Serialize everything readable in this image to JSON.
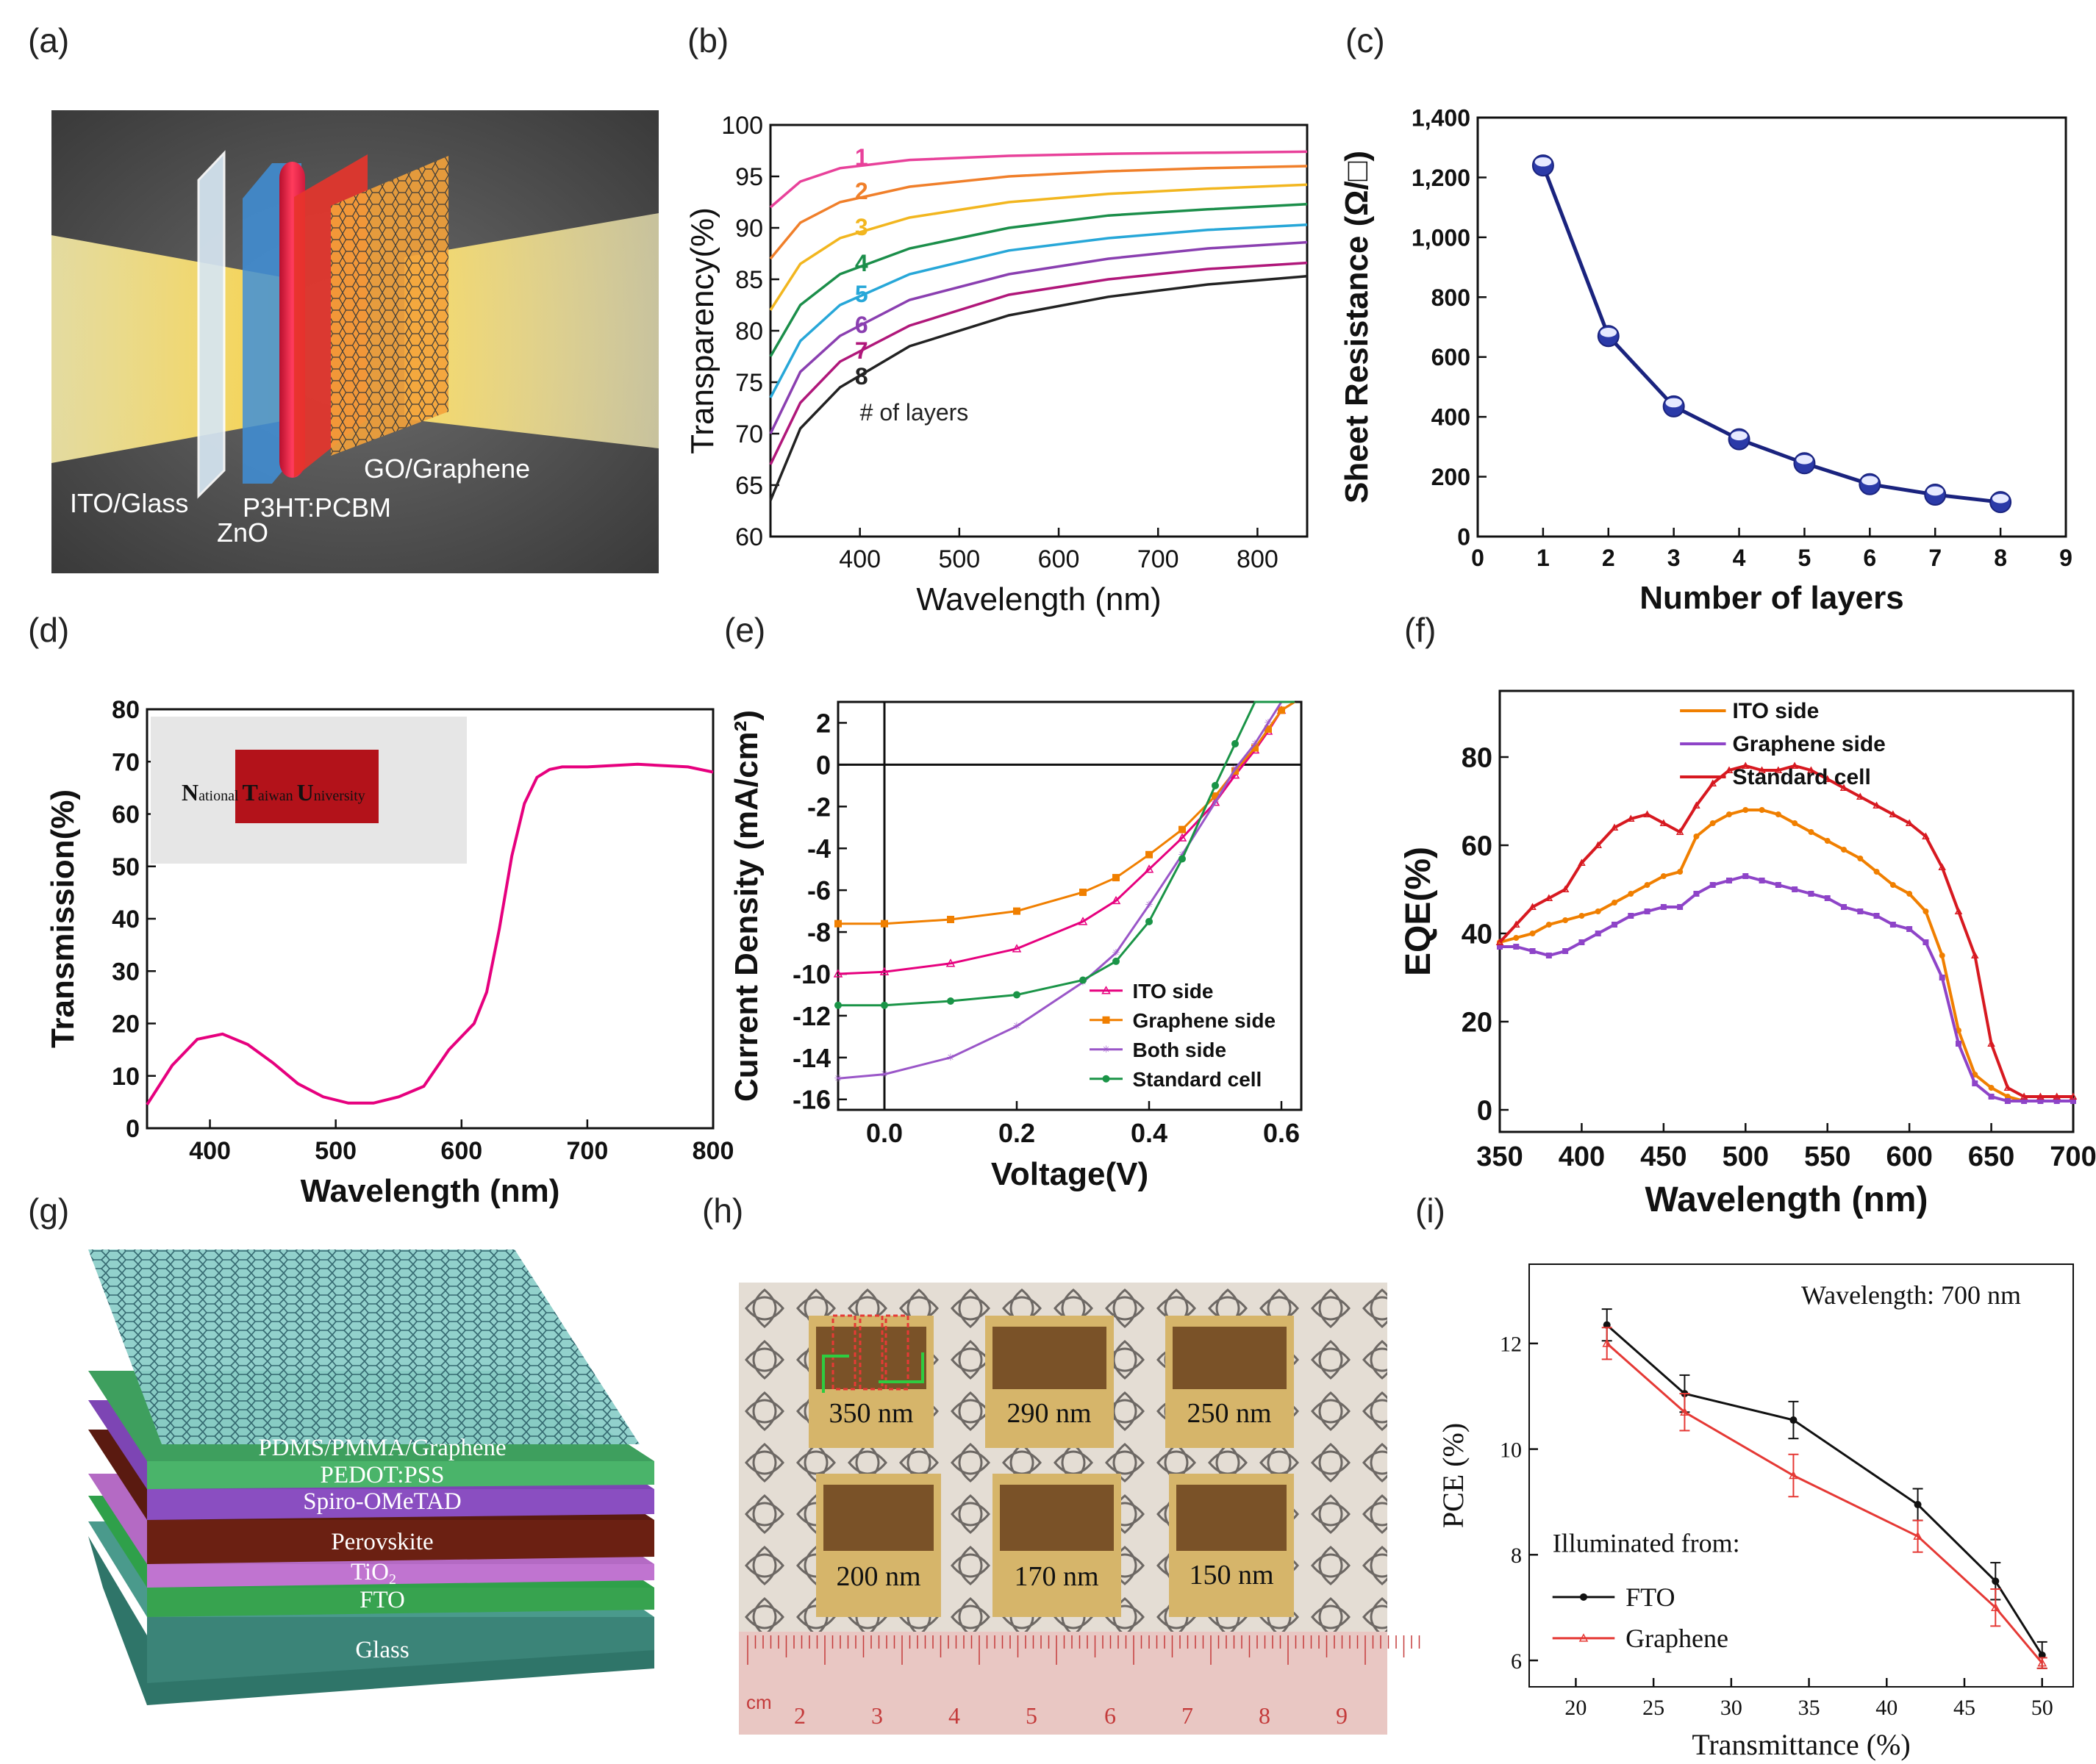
{
  "panel_labels": [
    "(a)",
    "(b)",
    "(c)",
    "(d)",
    "(e)",
    "(f)",
    "(g)",
    "(h)",
    "(i)"
  ],
  "panel_a": {
    "layers": [
      "ITO/Glass",
      "ZnO",
      "P3HT:PCBM",
      "GO/Graphene"
    ]
  },
  "panel_d_inset": {
    "text_parts": [
      "N",
      "ational ",
      "T",
      "aiwan ",
      "U",
      "niversity"
    ]
  },
  "panel_g": {
    "layers": [
      "PDMS/PMMA/Graphene",
      "PEDOT:PSS",
      "Spiro-OMeTAD",
      "Perovskite",
      "TiO",
      "2",
      "FTO",
      "Glass"
    ],
    "colors": {
      "graphene": "#6fb8b3",
      "pedot": "#4ab46a",
      "spiro": "#8a4ec1",
      "perovskite": "#6b2012",
      "tio2": "#c074d0",
      "fto": "#37a34f",
      "glass": "#3f8a7d"
    }
  },
  "panel_h": {
    "samples": [
      "350 nm",
      "290 nm",
      "250 nm",
      "200 nm",
      "170 nm",
      "150 nm"
    ],
    "ruler_label": "cm",
    "ruler_numbers": [
      "2",
      "3",
      "4",
      "5",
      "6",
      "7",
      "8",
      "9"
    ]
  },
  "chart_data": [
    {
      "id": "b",
      "type": "line",
      "xlabel": "Wavelength (nm)",
      "ylabel": "Transparency(%)",
      "xlim": [
        310,
        850
      ],
      "ylim": [
        60,
        100
      ],
      "xticks": [
        400,
        500,
        600,
        700,
        800
      ],
      "yticks": [
        60,
        65,
        70,
        75,
        80,
        85,
        90,
        95,
        100
      ],
      "annotation": "# of layers",
      "x": [
        310,
        340,
        380,
        450,
        550,
        650,
        750,
        850
      ],
      "series": [
        {
          "name": "1",
          "color": "#e8419a",
          "values": [
            92.0,
            94.5,
            95.8,
            96.6,
            97.0,
            97.2,
            97.3,
            97.4
          ]
        },
        {
          "name": "2",
          "color": "#f07f2a",
          "values": [
            87.0,
            90.5,
            92.5,
            94.0,
            95.0,
            95.5,
            95.8,
            96.0
          ]
        },
        {
          "name": "3",
          "color": "#f2b61f",
          "values": [
            82.0,
            86.5,
            89.0,
            91.0,
            92.5,
            93.3,
            93.8,
            94.2
          ]
        },
        {
          "name": "4",
          "color": "#1b8e4a",
          "values": [
            77.5,
            82.5,
            85.5,
            88.0,
            90.0,
            91.2,
            91.8,
            92.3
          ]
        },
        {
          "name": "5",
          "color": "#27a7d8",
          "values": [
            73.5,
            79.0,
            82.5,
            85.5,
            87.8,
            89.0,
            89.8,
            90.3
          ]
        },
        {
          "name": "6",
          "color": "#8a3fb0",
          "values": [
            70.0,
            76.0,
            79.5,
            83.0,
            85.5,
            87.0,
            88.0,
            88.6
          ]
        },
        {
          "name": "7",
          "color": "#b0177a",
          "values": [
            67.0,
            73.0,
            77.0,
            80.5,
            83.5,
            85.0,
            86.0,
            86.6
          ]
        },
        {
          "name": "8",
          "color": "#222222",
          "values": [
            63.5,
            70.5,
            74.5,
            78.5,
            81.5,
            83.3,
            84.5,
            85.3
          ]
        }
      ]
    },
    {
      "id": "c",
      "type": "line",
      "xlabel": "Number of layers",
      "ylabel": "Sheet Resistance (Ω/□)",
      "xlim": [
        0,
        9
      ],
      "ylim": [
        0,
        1400
      ],
      "xticks": [
        0,
        1,
        2,
        3,
        4,
        5,
        6,
        7,
        8,
        9
      ],
      "yticks": [
        0,
        200,
        400,
        600,
        800,
        1000,
        1200,
        1400
      ],
      "ytick_labels": [
        "0",
        "200",
        "400",
        "600",
        "800",
        "1,000",
        "1,200",
        "1,400"
      ],
      "x": [
        1,
        2,
        3,
        4,
        5,
        6,
        7,
        8
      ],
      "values": [
        1240,
        670,
        435,
        325,
        245,
        175,
        140,
        115
      ],
      "color": "#1a237e"
    },
    {
      "id": "d",
      "type": "line",
      "xlabel": "Wavelength (nm)",
      "ylabel": "Transmission(%)",
      "xlim": [
        350,
        800
      ],
      "ylim": [
        0,
        80
      ],
      "xticks": [
        400,
        500,
        600,
        700,
        800
      ],
      "yticks": [
        0,
        10,
        20,
        30,
        40,
        50,
        60,
        70,
        80
      ],
      "color": "#e6007e",
      "x": [
        350,
        370,
        390,
        410,
        430,
        450,
        470,
        490,
        510,
        530,
        550,
        570,
        590,
        610,
        620,
        630,
        640,
        650,
        660,
        670,
        680,
        700,
        740,
        780,
        800
      ],
      "values": [
        4.5,
        12,
        17,
        18,
        16,
        12.5,
        8.5,
        6,
        4.8,
        4.8,
        6,
        8,
        15,
        20,
        26,
        38,
        52,
        62,
        67,
        68.5,
        69,
        69,
        69.5,
        69,
        68
      ]
    },
    {
      "id": "e",
      "type": "line",
      "xlabel": "Voltage(V)",
      "ylabel": "Current Density (mA/cm²)",
      "xlim": [
        -0.07,
        0.63
      ],
      "ylim": [
        -16.5,
        3
      ],
      "xticks": [
        0.0,
        0.2,
        0.4,
        0.6
      ],
      "xtick_labels": [
        "0.0",
        "0.2",
        "0.4",
        "0.6"
      ],
      "yticks": [
        -16,
        -14,
        -12,
        -10,
        -8,
        -6,
        -4,
        -2,
        0,
        2
      ],
      "x": [
        -0.07,
        0.0,
        0.1,
        0.2,
        0.3,
        0.35,
        0.4,
        0.45,
        0.5,
        0.53,
        0.56,
        0.58,
        0.6,
        0.62
      ],
      "series": [
        {
          "name": "ITO side",
          "color": "#e6007e",
          "values": [
            -10.0,
            -9.9,
            -9.5,
            -8.8,
            -7.5,
            -6.5,
            -5.0,
            -3.5,
            -1.8,
            -0.5,
            0.7,
            1.6,
            2.6,
            3.0
          ]
        },
        {
          "name": "Graphene side",
          "color": "#f07f00",
          "values": [
            -7.6,
            -7.6,
            -7.4,
            -7.0,
            -6.1,
            -5.4,
            -4.3,
            -3.1,
            -1.5,
            -0.3,
            0.8,
            1.7,
            2.6,
            3.0
          ]
        },
        {
          "name": "Both side",
          "color": "#9a56c8",
          "values": [
            -15.0,
            -14.8,
            -14.0,
            -12.5,
            -10.4,
            -9.0,
            -6.7,
            -4.3,
            -1.8,
            -0.2,
            1.0,
            2.0,
            3.0,
            3.0
          ]
        },
        {
          "name": "Standard cell",
          "color": "#1a9447",
          "values": [
            -11.5,
            -11.5,
            -11.3,
            -11.0,
            -10.3,
            -9.4,
            -7.5,
            -4.5,
            -1.0,
            1.0,
            3.0,
            3.0,
            3.0,
            3.0
          ]
        }
      ]
    },
    {
      "id": "f",
      "type": "line",
      "xlabel": "Wavelength (nm)",
      "ylabel": "EQE(%)",
      "xlim": [
        350,
        700
      ],
      "ylim": [
        -5,
        95
      ],
      "xticks": [
        350,
        400,
        450,
        500,
        550,
        600,
        650,
        700
      ],
      "yticks": [
        0,
        20,
        40,
        60,
        80
      ],
      "x": [
        350,
        360,
        370,
        380,
        390,
        400,
        410,
        420,
        430,
        440,
        450,
        460,
        470,
        480,
        490,
        500,
        510,
        520,
        530,
        540,
        550,
        560,
        570,
        580,
        590,
        600,
        610,
        620,
        630,
        640,
        650,
        660,
        670,
        680,
        690,
        700
      ],
      "series": [
        {
          "name": "ITO side",
          "color": "#f07f00",
          "values": [
            38,
            39,
            40,
            42,
            43,
            44,
            45,
            47,
            49,
            51,
            53,
            54,
            62,
            65,
            67,
            68,
            68,
            67,
            65,
            63,
            61,
            59,
            57,
            54,
            51,
            49,
            45,
            35,
            18,
            8,
            5,
            3,
            2,
            2,
            2,
            2
          ]
        },
        {
          "name": "Graphene side",
          "color": "#8e44c8",
          "values": [
            37,
            37,
            36,
            35,
            36,
            38,
            40,
            42,
            44,
            45,
            46,
            46,
            49,
            51,
            52,
            53,
            52,
            51,
            50,
            49,
            48,
            46,
            45,
            44,
            42,
            41,
            38,
            30,
            15,
            6,
            3,
            2,
            2,
            2,
            2,
            2
          ]
        },
        {
          "name": "Standard cell",
          "color": "#d71920",
          "values": [
            38,
            42,
            46,
            48,
            50,
            56,
            60,
            64,
            66,
            67,
            65,
            63,
            69,
            74,
            77,
            78,
            77,
            77,
            78,
            77,
            75,
            73,
            71,
            69,
            67,
            65,
            62,
            55,
            45,
            35,
            15,
            5,
            3,
            3,
            3,
            3
          ]
        }
      ]
    },
    {
      "id": "i",
      "type": "line",
      "xlabel": "Transmittance (%)",
      "ylabel": "PCE (%)",
      "xlim": [
        17,
        52
      ],
      "ylim": [
        5.5,
        13.5
      ],
      "xticks": [
        20,
        25,
        30,
        35,
        40,
        45,
        50
      ],
      "yticks": [
        6,
        8,
        10,
        12
      ],
      "annotation": "Wavelength: 700 nm",
      "legend_title": "Illuminated from:",
      "x": [
        22,
        27,
        34,
        42,
        47,
        50
      ],
      "series": [
        {
          "name": "FTO",
          "color": "#111111",
          "values": [
            12.35,
            11.05,
            10.55,
            8.95,
            7.5,
            6.1
          ],
          "err": [
            0.3,
            0.35,
            0.35,
            0.3,
            0.35,
            0.25
          ]
        },
        {
          "name": "Graphene",
          "color": "#e53935",
          "values": [
            12.0,
            10.7,
            9.5,
            8.35,
            7.0,
            5.95
          ],
          "err": [
            0.3,
            0.35,
            0.4,
            0.3,
            0.35,
            0.1
          ]
        }
      ]
    }
  ]
}
